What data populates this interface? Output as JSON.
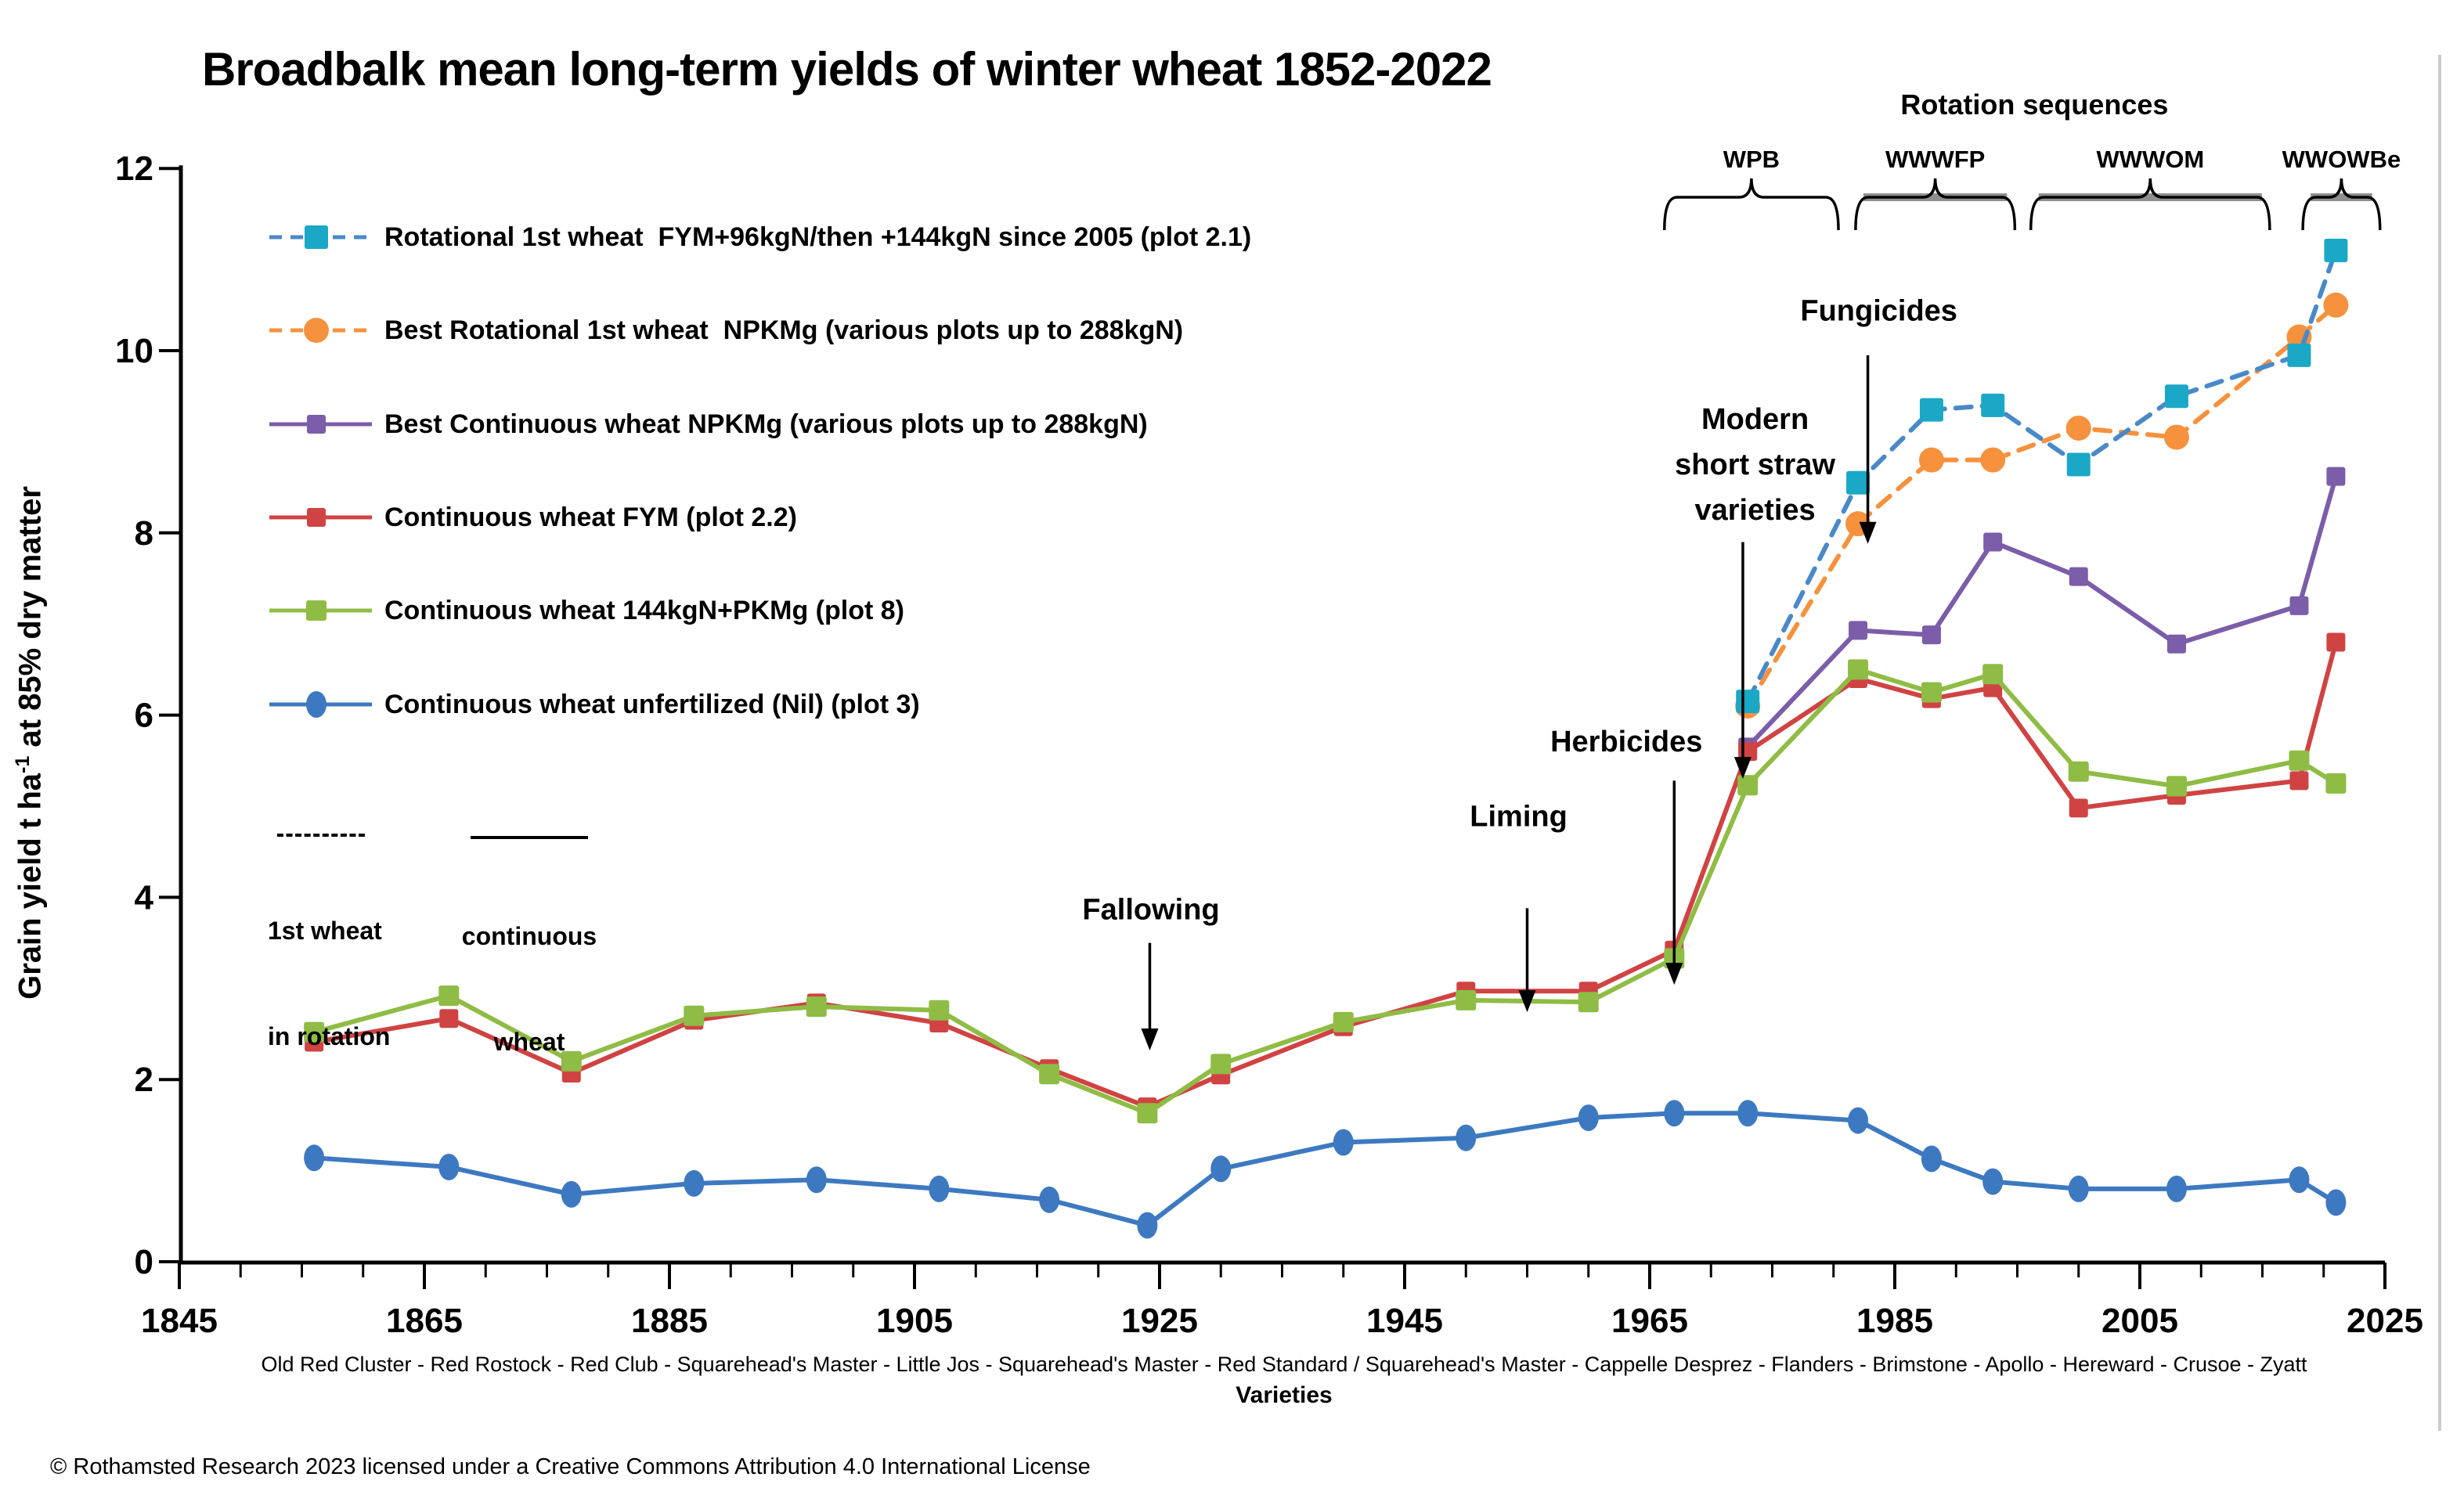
{
  "page": {
    "title": "Broadbalk mean long-term yields of winter wheat 1852-2022",
    "copyright": "© Rothamsted Research 2023 licensed under a Creative Commons Attribution 4.0 International License"
  },
  "y_axis": {
    "label_pre": "Grain yield t ha",
    "label_sup": "-1",
    "label_post": " at 85% dry matter",
    "ticks": [
      0,
      2,
      4,
      6,
      8,
      10,
      12
    ],
    "min": 0,
    "max": 12
  },
  "x_axis": {
    "major_ticks": [
      1845,
      1865,
      1885,
      1905,
      1925,
      1945,
      1965,
      1985,
      2005,
      2025
    ],
    "minor_step": 5,
    "min": 1845,
    "max": 2025,
    "caption": "Old Red Cluster - Red Rostock - Red Club - Squarehead's Master - Little Jos - Squarehead's Master - Red Standard / Squarehead's Master - Cappelle Desprez - Flanders - Brimstone - Apollo - Hereward - Crusoe - Zyatt",
    "label": "Varieties"
  },
  "legend": {
    "items": [
      {
        "series": "rot_fym",
        "label": "Rotational 1st wheat  FYM+96kgN/then +144kgN since 2005 (plot 2.1)"
      },
      {
        "series": "best_rot",
        "label": "Best Rotational 1st wheat  NPKMg (various plots up to 288kgN)"
      },
      {
        "series": "best_cont",
        "label": "Best Continuous wheat NPKMg (various plots up to 288kgN)"
      },
      {
        "series": "cont_fym",
        "label": "Continuous wheat FYM (plot 2.2)"
      },
      {
        "series": "cont_n144",
        "label": "Continuous wheat 144kgN+PKMg (plot 8)"
      },
      {
        "series": "nil",
        "label": "Continuous wheat unfertilized (Nil) (plot 3)"
      }
    ],
    "key": {
      "dashed_line1": "1st wheat",
      "dashed_line2": "in rotation",
      "solid_line1": "continuous",
      "solid_line2": "wheat"
    }
  },
  "annotations": [
    {
      "name": "fallowing",
      "lines": [
        "Fallowing"
      ],
      "text_year": 1924.3,
      "text_value": 3.76,
      "arrow": {
        "year": 1924.2,
        "from": 3.5,
        "to": 2.32
      }
    },
    {
      "name": "liming",
      "lines": [
        "Liming"
      ],
      "text_year": 1954.3,
      "text_value": 4.78,
      "arrow": {
        "year": 1955.0,
        "from": 3.88,
        "to": 2.74
      }
    },
    {
      "name": "herbicides",
      "lines": [
        "Herbicides"
      ],
      "text_year": 1963.1,
      "text_value": 5.6,
      "arrow": {
        "year": 1967.0,
        "from": 5.28,
        "to": 3.04
      }
    },
    {
      "name": "modern-short-straw-varieties",
      "lines": [
        "Modern",
        "short straw",
        "varieties"
      ],
      "text_year": 1973.6,
      "text_value": 9.14,
      "arrow": {
        "year": 1972.6,
        "from": 7.9,
        "to": 5.3
      }
    },
    {
      "name": "fungicides",
      "lines": [
        "Fungicides"
      ],
      "text_year": 1983.7,
      "text_value": 10.33,
      "arrow": {
        "year": 1982.8,
        "from": 9.95,
        "to": 7.88
      }
    }
  ],
  "rotation_sequences": {
    "title": "Rotation sequences",
    "title_year": 1996.4,
    "groups": [
      {
        "label": "WPB",
        "from": 1966.2,
        "to": 1980.4,
        "thick": false
      },
      {
        "label": "WWWFP",
        "from": 1981.8,
        "to": 1994.8,
        "thick": true
      },
      {
        "label": "WWWOM",
        "from": 1996.1,
        "to": 2015.6,
        "thick": true
      },
      {
        "label": "WWOWBe",
        "from": 2018.3,
        "to": 2024.6,
        "thick": true
      }
    ],
    "thick_color": "#8f8f8f"
  },
  "styles": {
    "axis_color": "#000000",
    "right_border_color": "#cccccc"
  },
  "chart_data": {
    "type": "line",
    "title": "Broadbalk mean long-term yields of winter wheat 1852-2022",
    "xlabel": "Varieties",
    "ylabel": "Grain yield t ha-1 at 85% dry matter",
    "xlim": [
      1845,
      2025
    ],
    "ylim": [
      0,
      12
    ],
    "grid": false,
    "legend_position": "upper left",
    "series": [
      {
        "id": "best_cont",
        "name": "Best Continuous wheat NPKMg (various plots up to 288kgN)",
        "marker_color": "#7b5da9",
        "line_color": "#7b5da9",
        "dash": false,
        "marker": "square",
        "marker_size": 24,
        "x": [
          1973,
          1982,
          1988,
          1993,
          2000,
          2008,
          2018,
          2021
        ],
        "values": [
          5.65,
          6.93,
          6.88,
          7.9,
          7.52,
          6.78,
          7.2,
          8.62
        ]
      },
      {
        "id": "cont_fym",
        "name": "Continuous wheat FYM (plot 2.2)",
        "marker_color": "#d04343",
        "line_color": "#d04343",
        "dash": false,
        "marker": "square",
        "marker_size": 24,
        "x": [
          1856,
          1867,
          1877,
          1887,
          1897,
          1907,
          1916,
          1924,
          1930,
          1940,
          1950,
          1960,
          1967,
          1973,
          1982,
          1988,
          1993,
          2000,
          2008,
          2018,
          2021
        ],
        "values": [
          2.41,
          2.67,
          2.07,
          2.65,
          2.84,
          2.62,
          2.12,
          1.7,
          2.05,
          2.58,
          2.97,
          2.97,
          3.42,
          5.6,
          6.4,
          6.18,
          6.3,
          4.98,
          5.12,
          5.28,
          6.8
        ]
      },
      {
        "id": "cont_n144",
        "name": "Continuous wheat 144kgN+PKMg (plot 8)",
        "marker_color": "#8fbc45",
        "line_color": "#8fbc45",
        "dash": false,
        "marker": "square",
        "marker_size": 26,
        "x": [
          1856,
          1867,
          1877,
          1887,
          1897,
          1907,
          1916,
          1924,
          1930,
          1940,
          1950,
          1960,
          1967,
          1973,
          1982,
          1988,
          1993,
          2000,
          2008,
          2018,
          2021
        ],
        "values": [
          2.52,
          2.92,
          2.2,
          2.7,
          2.8,
          2.76,
          2.06,
          1.63,
          2.17,
          2.63,
          2.87,
          2.85,
          3.33,
          5.23,
          6.5,
          6.25,
          6.45,
          5.38,
          5.22,
          5.5,
          5.25
        ]
      },
      {
        "id": "nil",
        "name": "Continuous wheat unfertilized (Nil) (plot 3)",
        "marker_color": "#3d79c0",
        "line_color": "#3d79c0",
        "dash": false,
        "marker": "ellipse",
        "marker_size": 26,
        "x": [
          1856,
          1867,
          1877,
          1887,
          1897,
          1907,
          1916,
          1924,
          1930,
          1940,
          1950,
          1960,
          1967,
          1973,
          1982,
          1988,
          1993,
          2000,
          2008,
          2018,
          2021
        ],
        "values": [
          1.14,
          1.04,
          0.74,
          0.86,
          0.9,
          0.8,
          0.68,
          0.4,
          1.02,
          1.31,
          1.36,
          1.58,
          1.63,
          1.63,
          1.55,
          1.13,
          0.88,
          0.8,
          0.8,
          0.9,
          0.65
        ]
      },
      {
        "id": "best_rot",
        "name": "Best Rotational 1st wheat NPKMg (various plots up to 288kgN)",
        "marker_color": "#f6913d",
        "line_color": "#f6913d",
        "dash": true,
        "marker": "circle",
        "marker_size": 32,
        "x": [
          1973,
          1982,
          1988,
          1993,
          2000,
          2008,
          2018,
          2021
        ],
        "values": [
          6.1,
          8.1,
          8.8,
          8.8,
          9.15,
          9.05,
          10.15,
          10.5
        ]
      },
      {
        "id": "rot_fym",
        "name": "Rotational 1st wheat FYM+96kgN/then +144kgN since 2005 (plot 2.1)",
        "marker_color": "#1ba8c6",
        "line_color": "#4a89c8",
        "dash": true,
        "marker": "square",
        "marker_size": 30,
        "x": [
          1973,
          1982,
          1988,
          1993,
          2000,
          2008,
          2018,
          2021
        ],
        "values": [
          6.15,
          8.55,
          9.35,
          9.4,
          8.75,
          9.5,
          9.95,
          11.1
        ]
      }
    ]
  }
}
